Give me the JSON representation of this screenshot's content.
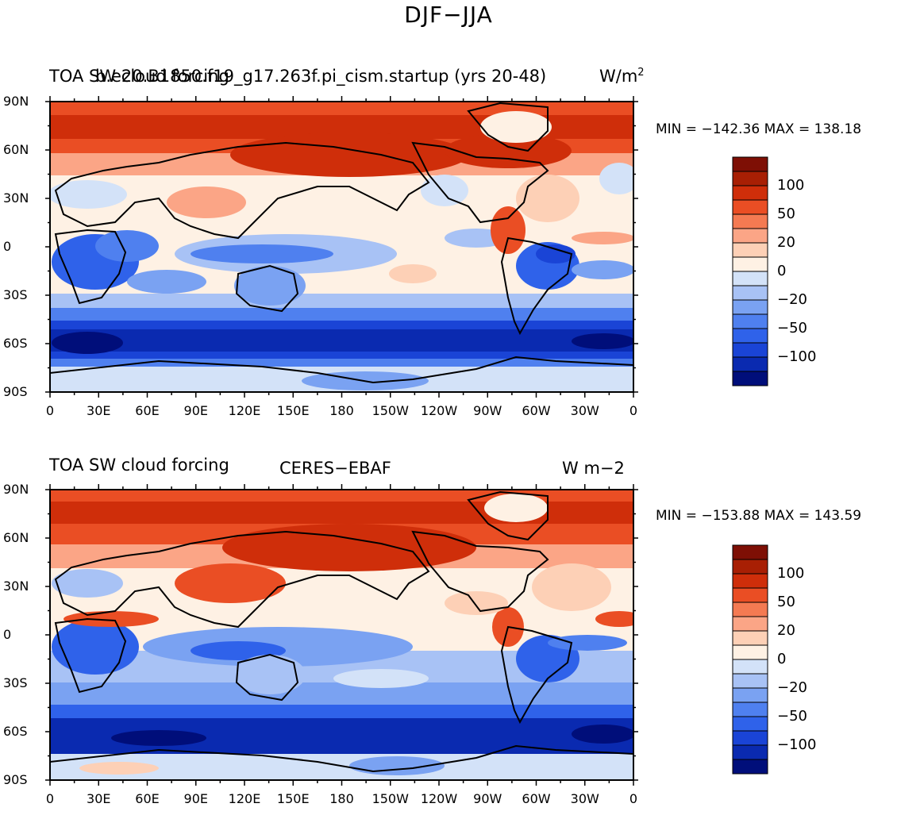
{
  "figure_title": "DJF−JJA",
  "colors": {
    "scale": [
      "#000e7a",
      "#0a2ab0",
      "#1a44d6",
      "#2f62ea",
      "#4f80ef",
      "#7aa2f2",
      "#a8c2f5",
      "#d3e2f8",
      "#fef1e4",
      "#fdd0b6",
      "#fba586",
      "#f47a52",
      "#ea4e24",
      "#cf2e0a",
      "#a81f04",
      "#7e0f05"
    ],
    "coast": "#000000"
  },
  "panels": [
    {
      "id": "model",
      "left_title": "TOA SW cloud forcing",
      "center_title": "b.e20.B1850.f19_g17.263f.pi_cism.startup (yrs 20-48)",
      "units": "W/m",
      "units_sup": "2",
      "min_label": "MIN = −142.36",
      "max_label": "MAX = 138.18",
      "min": -142.36,
      "max": 138.18
    },
    {
      "id": "obs",
      "left_title": "TOA SW cloud forcing",
      "center_title": "CERES−EBAF",
      "units": "W m−2",
      "min_label": "MIN = −153.88",
      "max_label": "MAX = 143.59",
      "min": -153.88,
      "max": 143.59
    }
  ],
  "lat_labels": [
    "90N",
    "60N",
    "30N",
    "0",
    "30S",
    "60S",
    "90S"
  ],
  "lon_labels": [
    "0",
    "30E",
    "60E",
    "90E",
    "120E",
    "150E",
    "180",
    "150W",
    "120W",
    "90W",
    "60W",
    "30W",
    "0"
  ],
  "colorbar_levels": [
    "100",
    "50",
    "20",
    "0",
    "−20",
    "−50",
    "−100"
  ]
}
